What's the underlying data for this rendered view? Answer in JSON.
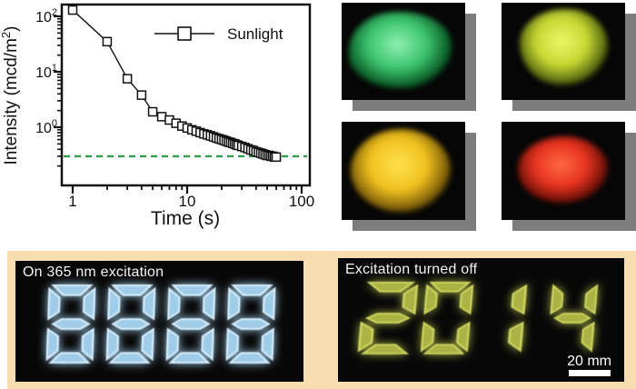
{
  "chart_data": {
    "type": "scatter",
    "series": [
      {
        "name": "Sunlight",
        "x": [
          1,
          2,
          3,
          4,
          5,
          6,
          7,
          8,
          9,
          10,
          11,
          12,
          13,
          14,
          15,
          16,
          17,
          18,
          19,
          20,
          21,
          22,
          23,
          24,
          25,
          26,
          27,
          28,
          30,
          32,
          34,
          36,
          38,
          40,
          42,
          44,
          46,
          48,
          50,
          52,
          54,
          56,
          58,
          60
        ],
        "y": [
          130,
          35,
          7.5,
          3.8,
          1.9,
          1.55,
          1.35,
          1.18,
          1.05,
          0.97,
          0.9,
          0.85,
          0.8,
          0.76,
          0.73,
          0.7,
          0.67,
          0.64,
          0.62,
          0.6,
          0.58,
          0.56,
          0.54,
          0.53,
          0.51,
          0.5,
          0.48,
          0.47,
          0.45,
          0.43,
          0.41,
          0.39,
          0.38,
          0.36,
          0.35,
          0.34,
          0.33,
          0.32,
          0.31,
          0.31,
          0.3,
          0.3,
          0.29,
          0.29
        ]
      }
    ],
    "title": "",
    "xlabel": "Time (s)",
    "ylabel": "Intensity (mcd/m²)",
    "x_scale": "log",
    "y_scale": "log",
    "xlim": [
      0.82,
      115
    ],
    "ylim": [
      0.089,
      150
    ],
    "x_ticks": [
      1,
      10,
      100
    ],
    "y_ticks": [
      1,
      10,
      100
    ],
    "marker": "open-square",
    "grid": false,
    "legend_position": "upper-right",
    "threshold_line": {
      "value": 0.3,
      "color": "#2f9e4f",
      "style": "dashed"
    }
  },
  "samples": [
    {
      "name": "green phosphor powder",
      "color_bright": "#8ff0b2",
      "color_main": "#3cc46e",
      "color_dark": "#0b5c27"
    },
    {
      "name": "yellow-green phosphor powder",
      "color_bright": "#ecf868",
      "color_main": "#c6d832",
      "color_dark": "#55660f"
    },
    {
      "name": "yellow phosphor powder",
      "color_bright": "#ffe24e",
      "color_main": "#f0c11e",
      "color_dark": "#7a5a08"
    },
    {
      "name": "red phosphor powder",
      "color_bright": "#ff6a42",
      "color_main": "#e83420",
      "color_dark": "#6e1007"
    }
  ],
  "bottom": {
    "left_panel": {
      "label": "On 365 nm excitation",
      "digits": "8888",
      "digit_color": "#9fcce8",
      "digit_color_bright": "#d8eefb"
    },
    "right_panel": {
      "label": "Excitation turned off",
      "digits": "2014",
      "digit_color": "#aab344",
      "digit_color_bright": "#cdd660",
      "scale_bar_label": "20 mm"
    }
  },
  "colors": {
    "panel_bg": "#f8ddb1",
    "photo_bg": "#070707",
    "photo_shadow": "#7d7d7d",
    "axis_ink": "#111111"
  }
}
